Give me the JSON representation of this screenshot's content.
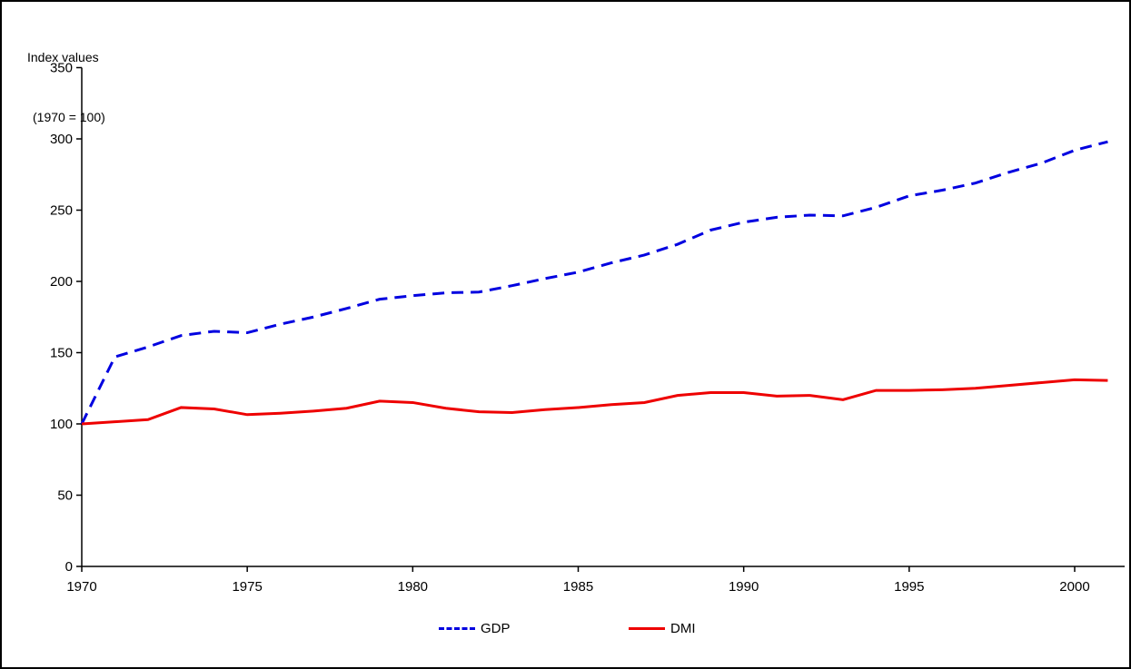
{
  "title": {
    "line1": "Index values",
    "line2": "(1970 = 100)"
  },
  "chart_data": {
    "type": "line",
    "title": "Index values (1970 = 100)",
    "xlabel": "",
    "ylabel": "Index values (1970 = 100)",
    "x": [
      1970,
      1971,
      1972,
      1973,
      1974,
      1975,
      1976,
      1977,
      1978,
      1979,
      1980,
      1981,
      1982,
      1983,
      1984,
      1985,
      1986,
      1987,
      1988,
      1989,
      1990,
      1991,
      1992,
      1993,
      1994,
      1995,
      1996,
      1997,
      1998,
      1999,
      2000,
      2001
    ],
    "xticks": [
      1970,
      1975,
      1980,
      1985,
      1990,
      1995,
      2000
    ],
    "ylim": [
      0,
      350
    ],
    "ytick_step": 50,
    "grid": false,
    "legend_position": "bottom",
    "axis_color": "#000000",
    "background_color": "#ffffff",
    "series": [
      {
        "name": "GDP",
        "color": "#0000e0",
        "style": "dashed",
        "values": [
          100,
          147,
          154,
          162,
          165,
          164,
          170,
          175,
          181,
          187.5,
          190,
          192,
          192.5,
          197,
          202,
          206.5,
          213,
          218.5,
          226,
          236,
          241.5,
          245,
          246.5,
          246,
          252,
          260,
          264,
          269,
          276.5,
          283,
          292,
          298
        ]
      },
      {
        "name": "DMI",
        "color": "#ee0000",
        "style": "solid",
        "values": [
          100,
          101.5,
          103,
          111.5,
          110.5,
          106.5,
          107.5,
          109,
          111,
          116,
          115,
          111,
          108.5,
          108,
          110,
          111.5,
          113.5,
          115,
          120,
          122,
          122,
          119.5,
          120,
          117,
          123.5,
          123.5,
          124,
          125,
          127,
          129,
          131,
          130.5
        ]
      }
    ]
  }
}
